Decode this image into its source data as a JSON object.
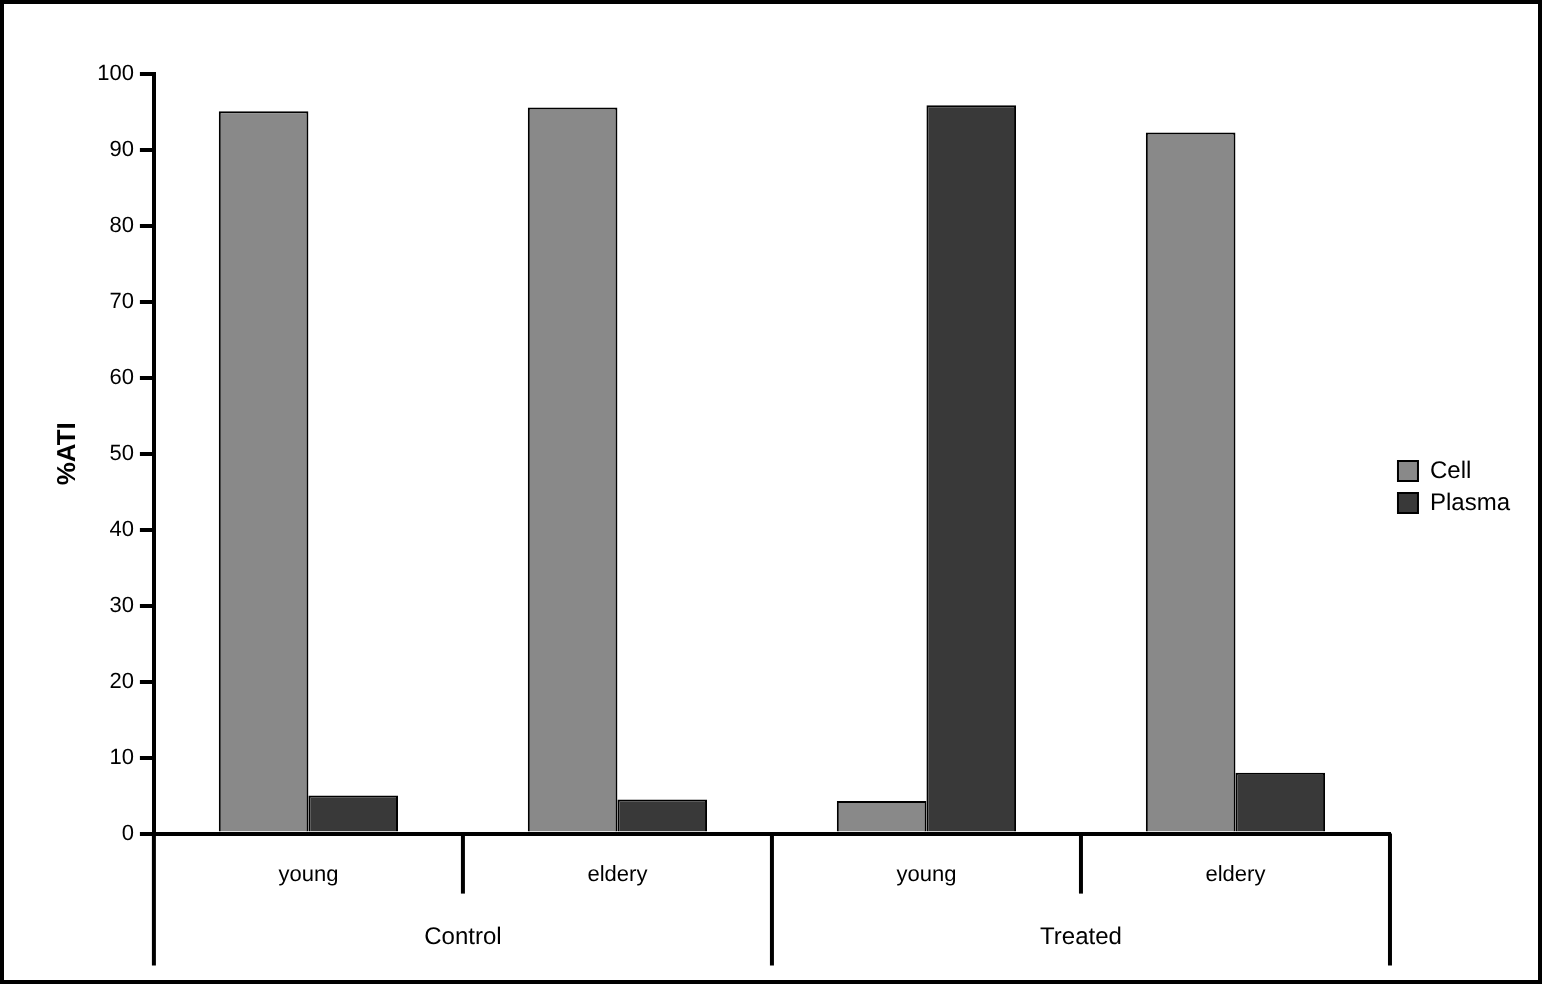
{
  "chart_data": {
    "type": "bar",
    "ylabel": "%ATI",
    "categories": [
      "young",
      "eldery",
      "young",
      "eldery"
    ],
    "series": [
      {
        "name": "Cell",
        "color": "#898989",
        "values": [
          95.1,
          95.6,
          4.3,
          92.3
        ]
      },
      {
        "name": "Plasma",
        "color": "#393939",
        "values": [
          5.0,
          4.5,
          95.9,
          8.0
        ]
      }
    ],
    "ylim": [
      0,
      100
    ],
    "yticks": [
      0,
      10,
      20,
      30,
      40,
      50,
      60,
      70,
      80,
      90,
      100
    ],
    "grid": false,
    "legend": "right",
    "annotations": [
      "Control",
      "Treated"
    ]
  }
}
